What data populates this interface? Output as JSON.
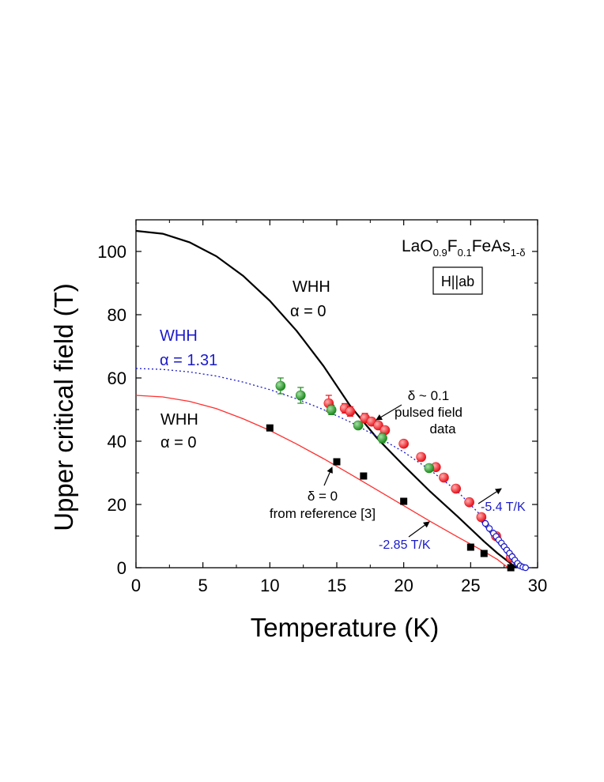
{
  "chart_data": {
    "type": "scatter",
    "xlabel": "Temperature (K)",
    "ylabel": "Upper critical field (T)",
    "xlim": [
      0,
      30
    ],
    "ylim": [
      0,
      110
    ],
    "xticks": [
      0,
      5,
      10,
      15,
      20,
      25,
      30
    ],
    "yticks": [
      0,
      20,
      40,
      60,
      80,
      100
    ],
    "x_tick_labels": [
      "0",
      "5",
      "10",
      "15",
      "20",
      "25",
      "30"
    ],
    "y_tick_labels": [
      "0",
      "20",
      "40",
      "60",
      "80",
      "100"
    ],
    "grid": false,
    "colors": {
      "axis": "#000000",
      "red": "#e8121a",
      "green": "#1e8a1e",
      "blue": "#1a1acc",
      "black": "#000000",
      "red_curve": "#ff3030"
    },
    "sample_title": {
      "base": "LaO",
      "sub1": "0.9",
      "mid1": "F",
      "sub2": "0.1",
      "mid2": "FeAs",
      "sub3": "1-δ"
    },
    "boxed_label": "H||ab",
    "series": [
      {
        "name": "WHH α = 0 (pulsed field)",
        "kind": "curve",
        "color": "#000000",
        "style": "solid",
        "x": [
          0,
          2,
          4,
          6,
          8,
          10,
          12,
          14,
          16,
          18,
          20,
          22,
          24,
          26,
          27,
          28,
          28.4
        ],
        "y": [
          106.5,
          105.6,
          102.9,
          98.5,
          92.3,
          84.4,
          74.9,
          63.8,
          51.2,
          41.0,
          32.3,
          24.0,
          16.3,
          8.3,
          4.6,
          1.3,
          0
        ]
      },
      {
        "name": "WHH α = 1.31",
        "kind": "curve",
        "color": "#1a1acc",
        "style": "dotted",
        "x": [
          0,
          2,
          4,
          6,
          8,
          10,
          12,
          14,
          16,
          18,
          20,
          22,
          24,
          26,
          27,
          28,
          28.5
        ],
        "y": [
          63.0,
          62.7,
          61.9,
          60.6,
          58.7,
          56.3,
          53.4,
          50.0,
          46.1,
          41.5,
          36.6,
          30.8,
          24.2,
          15.5,
          10.5,
          4.5,
          0
        ]
      },
      {
        "name": "WHH α = 0 (reference [3])",
        "kind": "curve",
        "color": "#ff3030",
        "style": "solid",
        "x": [
          0,
          2,
          4,
          6,
          8,
          10,
          12,
          14,
          16,
          18,
          20,
          22,
          24,
          26,
          27,
          27.8
        ],
        "y": [
          54.5,
          54.0,
          52.6,
          50.3,
          47.1,
          43.4,
          39.1,
          34.5,
          29.6,
          24.6,
          19.6,
          14.6,
          9.8,
          5.1,
          2.6,
          0
        ]
      },
      {
        "name": "Extrapolation slope -5.4 T/K",
        "kind": "curve",
        "color": "#1a1acc",
        "style": "solid",
        "x": [
          25.5,
          28.5
        ],
        "y": [
          16.2,
          0
        ]
      },
      {
        "name": "Red data",
        "kind": "points",
        "marker": "sphere",
        "color": "#e8121a",
        "x": [
          14.4,
          15.6,
          16.0,
          17.1,
          17.6,
          18.1,
          18.6,
          20.0,
          21.3,
          22.4,
          23.0,
          23.9,
          24.9,
          25.8,
          26.9,
          28.0
        ],
        "y": [
          52.0,
          50.4,
          49.4,
          47.3,
          46.2,
          45.0,
          43.5,
          39.2,
          35.0,
          31.8,
          28.5,
          25.0,
          20.7,
          16.0,
          10.0,
          3.2
        ],
        "err": [
          2.5,
          1.5,
          1.5,
          1.5,
          1.0,
          1.0,
          1.0,
          0,
          0,
          0,
          0,
          0,
          0,
          0,
          0,
          0
        ]
      },
      {
        "name": "Green data",
        "kind": "points",
        "marker": "sphere",
        "color": "#1e8a1e",
        "x": [
          10.8,
          12.3,
          14.6,
          16.6,
          18.4,
          21.9
        ],
        "y": [
          57.5,
          54.5,
          49.9,
          45.0,
          41.0,
          31.5
        ],
        "err": [
          2.5,
          2.5,
          1.5,
          0,
          1.5,
          0
        ]
      },
      {
        "name": "δ = 0 from reference [3]",
        "kind": "points",
        "marker": "square",
        "color": "#000000",
        "x": [
          10.0,
          15.0,
          17.0,
          20.0,
          25.0,
          26.0,
          28.0
        ],
        "y": [
          44.2,
          33.5,
          29.0,
          21.0,
          6.5,
          4.5,
          0.0
        ]
      },
      {
        "name": "Blue open circles",
        "kind": "points",
        "marker": "open-circle",
        "color": "#1a1acc",
        "x": [
          26.1,
          26.4,
          26.7,
          26.9,
          27.1,
          27.3,
          27.5,
          27.7,
          27.9,
          28.1,
          28.3,
          28.5,
          28.7,
          28.9,
          29.1
        ],
        "y": [
          14.0,
          12.4,
          10.9,
          9.9,
          8.8,
          7.8,
          6.7,
          5.6,
          4.6,
          3.5,
          2.4,
          1.4,
          0.6,
          0.2,
          0.0
        ]
      }
    ],
    "annotations": {
      "whh_black_1": "WHH",
      "whh_black_2": "α = 0",
      "whh_blue_1": "WHH",
      "whh_blue_2": "α = 1.31",
      "whh_red_1": "WHH",
      "whh_red_2": "α = 0",
      "pulsed_1": "δ ~ 0.1",
      "pulsed_2": "pulsed field",
      "pulsed_3": "data",
      "ref_1": "δ = 0",
      "ref_2": "from reference [3]",
      "slope_blue": "-5.4 T/K",
      "slope_red": "-2.85 T/K"
    }
  }
}
